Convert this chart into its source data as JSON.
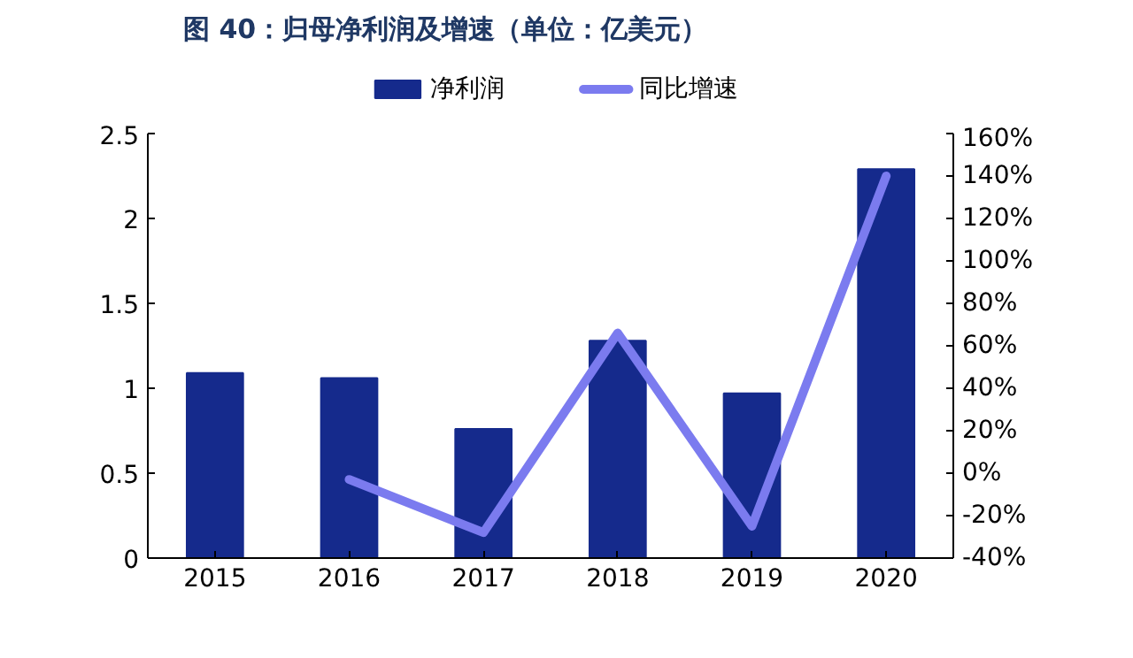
{
  "chart_data": {
    "type": "bar",
    "title": "图 40：归母净利润及增速（单位：亿美元）",
    "categories": [
      "2015",
      "2016",
      "2017",
      "2018",
      "2019",
      "2020"
    ],
    "series": [
      {
        "name": "净利润",
        "color": "#152a8c",
        "values": [
          1.09,
          1.06,
          0.76,
          1.28,
          0.97,
          2.29
        ]
      },
      {
        "name": "同比增速",
        "type": "line",
        "axis": "y2",
        "color": "#7b7bef",
        "values": [
          null,
          -3,
          -28,
          66,
          -25,
          140
        ]
      }
    ],
    "ylim": [
      0,
      2.5
    ],
    "yticks": [
      0,
      0.5,
      1,
      1.5,
      2,
      2.5
    ],
    "y2lim": [
      -40,
      160
    ],
    "y2ticks": [
      {
        "value": -40,
        "label": "-40%"
      },
      {
        "value": -20,
        "label": "-20%"
      },
      {
        "value": 0,
        "label": "0%"
      },
      {
        "value": 20,
        "label": "20%"
      },
      {
        "value": 40,
        "label": "40%"
      },
      {
        "value": 60,
        "label": "60%"
      },
      {
        "value": 80,
        "label": "80%"
      },
      {
        "value": 100,
        "label": "100%"
      },
      {
        "value": 120,
        "label": "120%"
      },
      {
        "value": 140,
        "label": "140%"
      },
      {
        "value": 160,
        "label": "160%"
      }
    ],
    "legend": "top",
    "grid": false
  }
}
